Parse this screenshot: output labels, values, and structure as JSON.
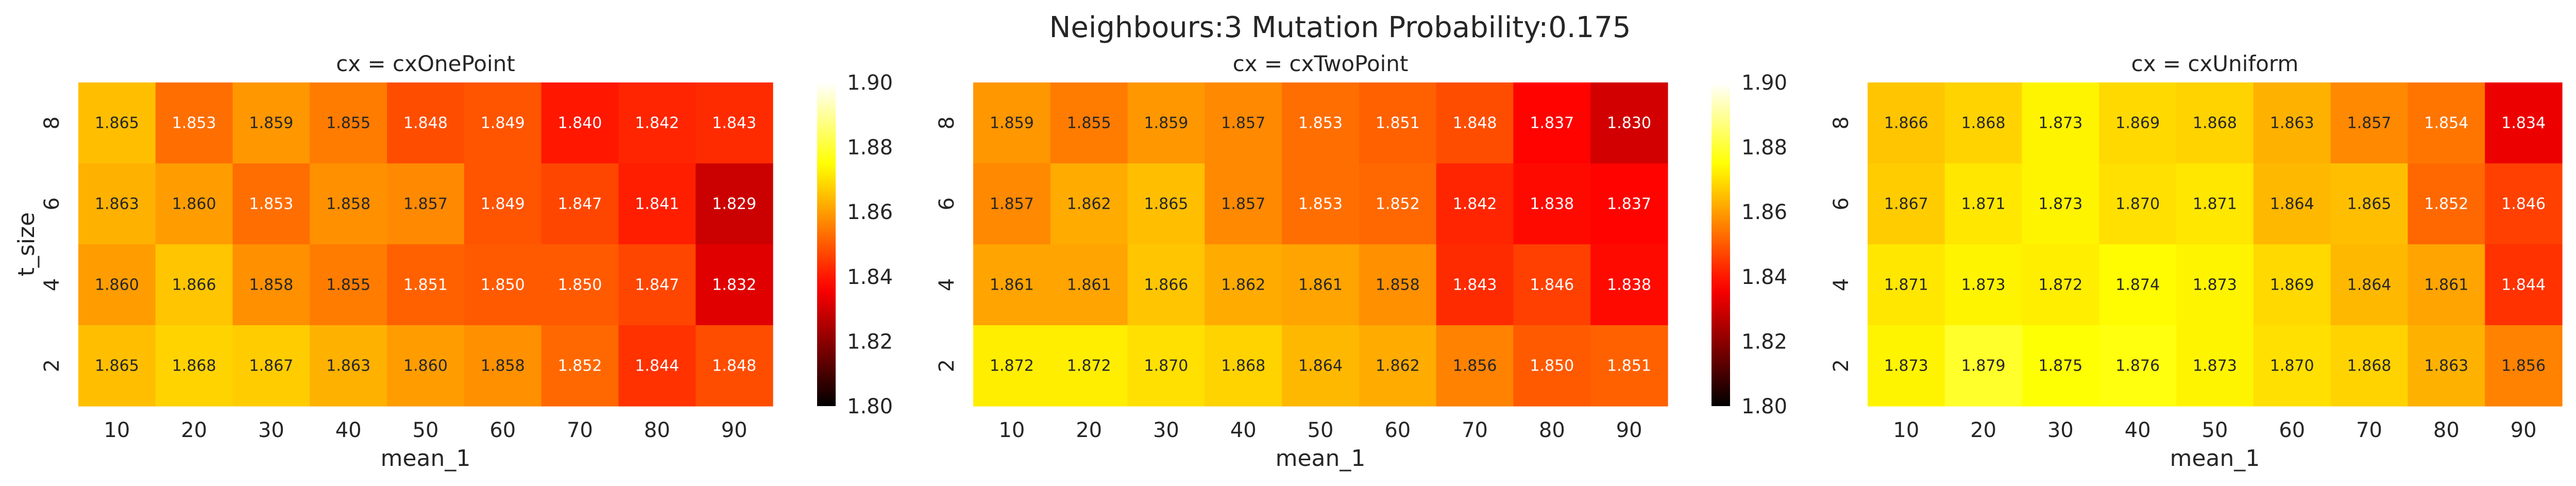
{
  "figure": {
    "title": "Neighbours:3 Mutation Probability:0.175"
  },
  "colormap": {
    "name": "hot",
    "vmin": 1.8,
    "vmax": 1.9,
    "ticks": [
      "1.80",
      "1.82",
      "1.84",
      "1.86",
      "1.88",
      "1.90"
    ]
  },
  "chart_data": [
    {
      "type": "heatmap",
      "title": "cx = cxOnePoint",
      "xlabel": "mean_1",
      "ylabel": "t_size",
      "x": [
        "10",
        "20",
        "30",
        "40",
        "50",
        "60",
        "70",
        "80",
        "90"
      ],
      "y": [
        "8",
        "6",
        "4",
        "2"
      ],
      "values": [
        [
          1.865,
          1.853,
          1.859,
          1.855,
          1.848,
          1.849,
          1.84,
          1.842,
          1.843
        ],
        [
          1.863,
          1.86,
          1.853,
          1.858,
          1.857,
          1.849,
          1.847,
          1.841,
          1.829
        ],
        [
          1.86,
          1.866,
          1.858,
          1.855,
          1.851,
          1.85,
          1.85,
          1.847,
          1.832
        ],
        [
          1.865,
          1.868,
          1.867,
          1.863,
          1.86,
          1.858,
          1.852,
          1.844,
          1.848
        ]
      ]
    },
    {
      "type": "heatmap",
      "title": "cx = cxTwoPoint",
      "xlabel": "mean_1",
      "ylabel": "",
      "x": [
        "10",
        "20",
        "30",
        "40",
        "50",
        "60",
        "70",
        "80",
        "90"
      ],
      "y": [
        "8",
        "6",
        "4",
        "2"
      ],
      "values": [
        [
          1.859,
          1.855,
          1.859,
          1.857,
          1.853,
          1.851,
          1.848,
          1.837,
          1.83
        ],
        [
          1.857,
          1.862,
          1.865,
          1.857,
          1.853,
          1.852,
          1.842,
          1.838,
          1.837
        ],
        [
          1.861,
          1.861,
          1.866,
          1.862,
          1.861,
          1.858,
          1.843,
          1.846,
          1.838
        ],
        [
          1.872,
          1.872,
          1.87,
          1.868,
          1.864,
          1.862,
          1.856,
          1.85,
          1.851
        ]
      ]
    },
    {
      "type": "heatmap",
      "title": "cx = cxUniform",
      "xlabel": "mean_1",
      "ylabel": "",
      "x": [
        "10",
        "20",
        "30",
        "40",
        "50",
        "60",
        "70",
        "80",
        "90"
      ],
      "y": [
        "8",
        "6",
        "4",
        "2"
      ],
      "values": [
        [
          1.866,
          1.868,
          1.873,
          1.869,
          1.868,
          1.863,
          1.857,
          1.854,
          1.834
        ],
        [
          1.867,
          1.871,
          1.873,
          1.87,
          1.871,
          1.864,
          1.865,
          1.852,
          1.846
        ],
        [
          1.871,
          1.873,
          1.872,
          1.874,
          1.873,
          1.869,
          1.864,
          1.861,
          1.844
        ],
        [
          1.873,
          1.879,
          1.875,
          1.876,
          1.873,
          1.87,
          1.868,
          1.863,
          1.856
        ]
      ]
    }
  ]
}
